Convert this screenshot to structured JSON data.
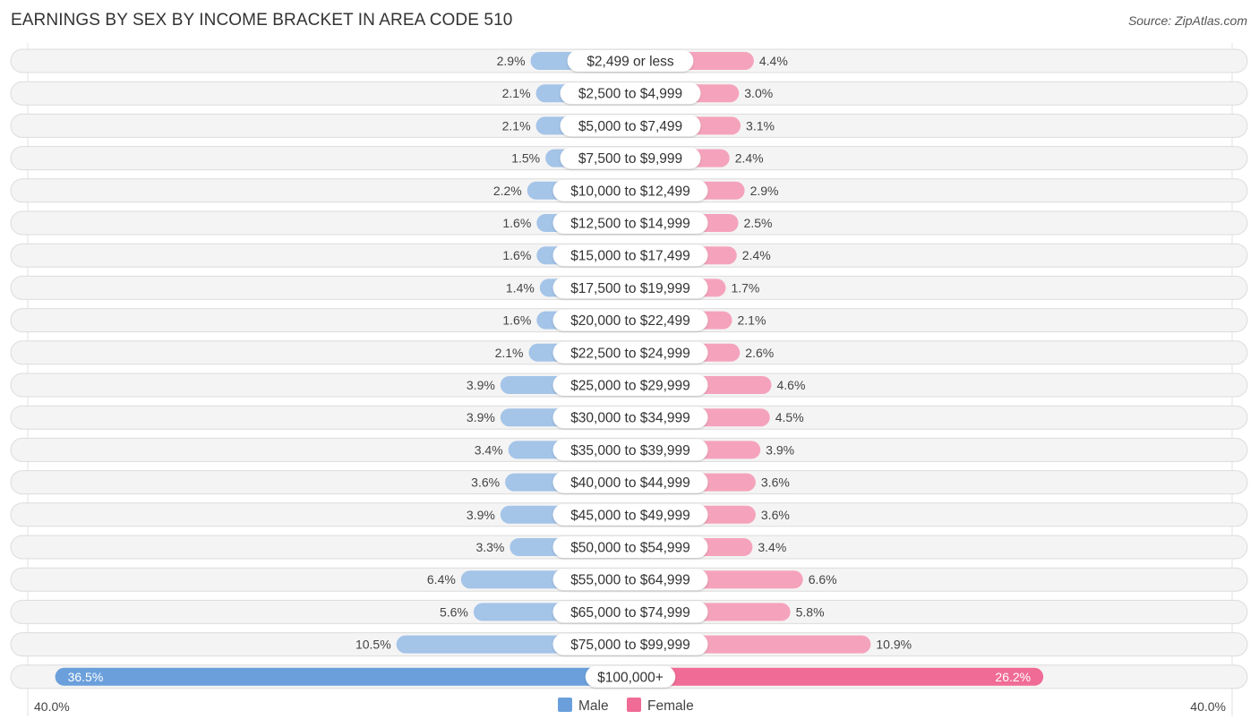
{
  "header": {
    "title": "EARNINGS BY SEX BY INCOME BRACKET IN AREA CODE 510",
    "source": "Source: ZipAtlas.com"
  },
  "colors": {
    "male": "#a4c4e8",
    "male_strong": "#6a9fdb",
    "female": "#f5a3bc",
    "female_strong": "#f06b96",
    "row_bg": "#f4f4f4"
  },
  "chart_data": {
    "type": "bar",
    "orientation": "horizontal-diverging",
    "title": "EARNINGS BY SEX BY INCOME BRACKET IN AREA CODE 510",
    "categories": [
      "$2,499 or less",
      "$2,500 to $4,999",
      "$5,000 to $7,499",
      "$7,500 to $9,999",
      "$10,000 to $12,499",
      "$12,500 to $14,999",
      "$15,000 to $17,499",
      "$17,500 to $19,999",
      "$20,000 to $22,499",
      "$22,500 to $24,999",
      "$25,000 to $29,999",
      "$30,000 to $34,999",
      "$35,000 to $39,999",
      "$40,000 to $44,999",
      "$45,000 to $49,999",
      "$50,000 to $54,999",
      "$55,000 to $64,999",
      "$65,000 to $74,999",
      "$75,000 to $99,999",
      "$100,000+"
    ],
    "series": [
      {
        "name": "Male",
        "values": [
          2.9,
          2.1,
          2.1,
          1.5,
          2.2,
          1.6,
          1.6,
          1.4,
          1.6,
          2.1,
          3.9,
          3.9,
          3.4,
          3.6,
          3.9,
          3.3,
          6.4,
          5.6,
          10.5,
          36.5
        ]
      },
      {
        "name": "Female",
        "values": [
          4.4,
          3.0,
          3.1,
          2.4,
          2.9,
          2.5,
          2.4,
          1.7,
          2.1,
          2.6,
          4.6,
          4.5,
          3.9,
          3.6,
          3.6,
          3.4,
          6.6,
          5.8,
          10.9,
          26.2
        ]
      }
    ],
    "value_labels": {
      "male": [
        "2.9%",
        "2.1%",
        "2.1%",
        "1.5%",
        "2.2%",
        "1.6%",
        "1.6%",
        "1.4%",
        "1.6%",
        "2.1%",
        "3.9%",
        "3.9%",
        "3.4%",
        "3.6%",
        "3.9%",
        "3.3%",
        "6.4%",
        "5.6%",
        "10.5%",
        "36.5%"
      ],
      "female": [
        "4.4%",
        "3.0%",
        "3.1%",
        "2.4%",
        "2.9%",
        "2.5%",
        "2.4%",
        "1.7%",
        "2.1%",
        "2.6%",
        "4.6%",
        "4.5%",
        "3.9%",
        "3.6%",
        "3.6%",
        "3.4%",
        "6.6%",
        "5.8%",
        "10.9%",
        "26.2%"
      ]
    },
    "xlim": [
      -40,
      40
    ],
    "axis_labels": {
      "left": "40.0%",
      "right": "40.0%"
    },
    "legend": {
      "position": "bottom-center",
      "entries": [
        "Male",
        "Female"
      ]
    },
    "unit": "%"
  }
}
